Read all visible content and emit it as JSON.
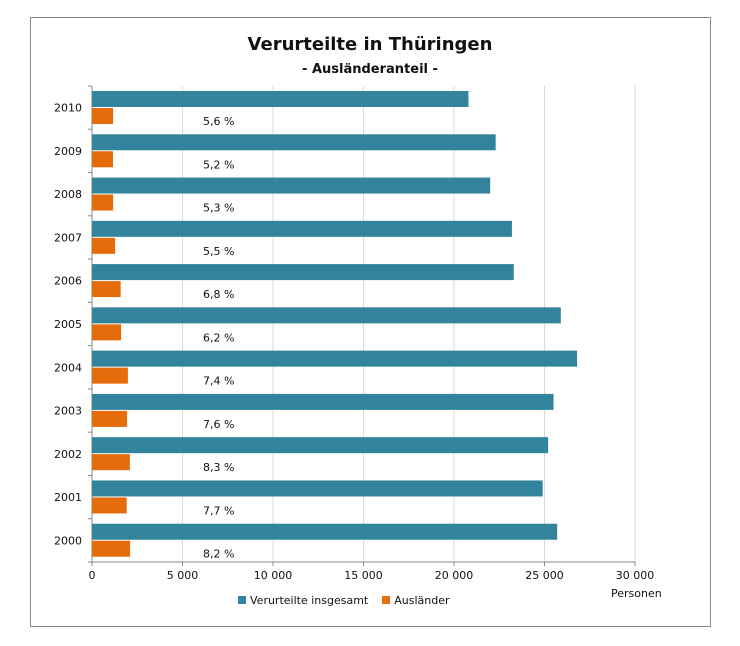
{
  "chart_data": {
    "type": "bar",
    "orientation": "horizontal",
    "title": "Verurteilte in Thüringen",
    "subtitle": "- Ausländeranteil -",
    "xlabel": "Personen",
    "xlim": [
      0,
      30000
    ],
    "xticks": [
      "0",
      "5 000",
      "10 000",
      "15 000",
      "20 000",
      "25 000",
      "30 000"
    ],
    "xtick_values": [
      0,
      5000,
      10000,
      15000,
      20000,
      25000,
      30000
    ],
    "grid": true,
    "legend": "bottom",
    "categories": [
      "2010",
      "2009",
      "2008",
      "2007",
      "2006",
      "2005",
      "2004",
      "2003",
      "2002",
      "2001",
      "2000"
    ],
    "series": [
      {
        "name": "Verurteilte insgesamt",
        "color": "#31849b",
        "values": [
          20800,
          22300,
          22000,
          23200,
          23300,
          25900,
          26800,
          25500,
          25200,
          24900,
          25700
        ]
      },
      {
        "name": "Ausländer",
        "color": "#e46c0a",
        "values": [
          1165,
          1160,
          1166,
          1276,
          1584,
          1606,
          1983,
          1938,
          2092,
          1917,
          2107
        ]
      }
    ],
    "data_labels": [
      "5,6 %",
      "5,2 %",
      "5,3 %",
      "5,5 %",
      "6,8 %",
      "6,2 %",
      "7,4 %",
      "7,6 %",
      "8,3 %",
      "7,7 %",
      "8,2 %"
    ]
  }
}
